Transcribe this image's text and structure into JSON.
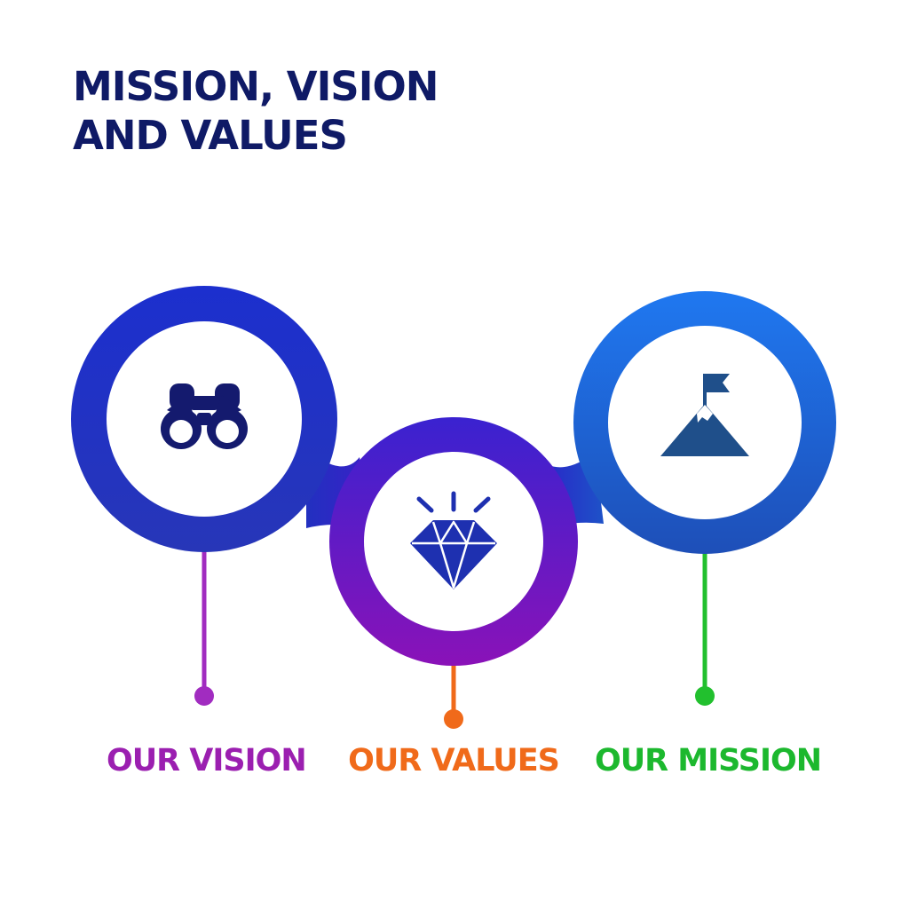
{
  "title": {
    "line1": "MISSION, VISION",
    "line2": "AND VALUES"
  },
  "items": [
    {
      "label": "OUR VISION",
      "icon": "binoculars-icon",
      "label_color": "#9b1fb0",
      "stem_color": "#a12cc0",
      "ring_color": "#1f33c8"
    },
    {
      "label": "OUR VALUES",
      "icon": "diamond-icon",
      "label_color": "#f06a1a",
      "stem_color": "#f06a1a",
      "ring_color": "#5a1ccc"
    },
    {
      "label": "OUR MISSION",
      "icon": "mountain-flag-icon",
      "label_color": "#1cb82e",
      "stem_color": "#22c02e",
      "ring_color": "#1a6ee0"
    }
  ],
  "colors": {
    "title": "#0f1a66",
    "icon_dark": "#141a6e",
    "icon_mid": "#1e30b0",
    "mountain": "#1f4f8a"
  }
}
